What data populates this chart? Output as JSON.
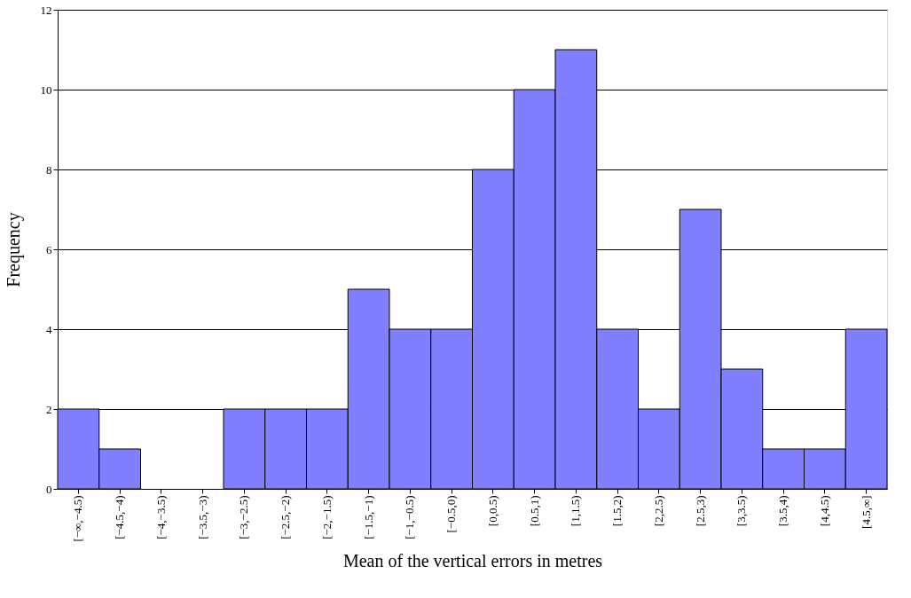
{
  "chart_data": {
    "type": "bar",
    "xlabel": "Mean of the vertical  errors in metres",
    "ylabel": "Frequency",
    "categories": [
      "[−∞,−4.5)",
      "[−4.5,−4)",
      "[−4,−3.5)",
      "[−3.5,−3)",
      "[−3,−2.5)",
      "[−2.5,−2)",
      "[−2,−1.5)",
      "[−1.5,−1)",
      "[−1,−0.5)",
      "[−0.5,0)",
      "[0,0.5)",
      "[0.5,1)",
      "[1,1.5)",
      "[1.5,2)",
      "[2,2.5)",
      "[2.5,3)",
      "[3,3.5)",
      "[3.5,4)",
      "[4,4.5)",
      "[4.5,∞]"
    ],
    "values": [
      2,
      1,
      0,
      0,
      2,
      2,
      2,
      5,
      4,
      4,
      8,
      10,
      11,
      4,
      2,
      7,
      3,
      1,
      1,
      4
    ],
    "color": "#8080ff",
    "ylim": [
      0,
      12
    ],
    "yticks": [
      0,
      2,
      4,
      6,
      8,
      10,
      12
    ],
    "grid": "y"
  }
}
